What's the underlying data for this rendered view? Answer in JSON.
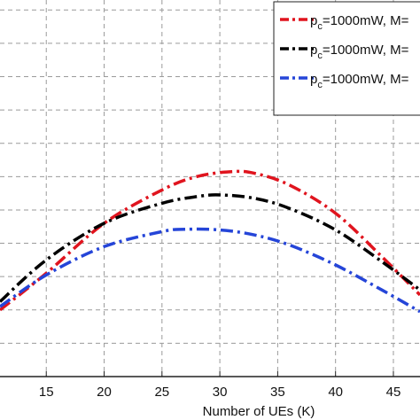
{
  "chart_data": {
    "type": "line",
    "title": "",
    "xlabel": "Number of UEs (K)",
    "ylabel": "",
    "xlim": [
      11,
      47.3
    ],
    "ylim": [
      0,
      11.3
    ],
    "x_ticks": [
      15,
      20,
      25,
      30,
      35,
      40,
      45
    ],
    "y_grid": [
      1,
      2,
      3,
      4,
      5,
      6,
      7,
      8,
      9,
      10,
      11
    ],
    "grid": true,
    "legend_position": "top-right",
    "series": [
      {
        "name": "p_c=1000mW, M=",
        "color": "#e0141e",
        "x": [
          11,
          15,
          20,
          25,
          28,
          31,
          33,
          36,
          40,
          44,
          47.3
        ],
        "y": [
          2.0,
          3.1,
          4.6,
          5.6,
          6.0,
          6.15,
          6.1,
          5.75,
          4.9,
          3.6,
          2.45
        ]
      },
      {
        "name": "p_c=1000mW, M=",
        "color": "#000000",
        "x": [
          11,
          15,
          20,
          25,
          28,
          30,
          33,
          36,
          40,
          44,
          47.3
        ],
        "y": [
          2.25,
          3.5,
          4.6,
          5.2,
          5.4,
          5.45,
          5.35,
          5.05,
          4.4,
          3.45,
          2.6
        ]
      },
      {
        "name": "p_c=1000mW, M=",
        "color": "#2545d8",
        "x": [
          11,
          15,
          20,
          25,
          27,
          30,
          33,
          36,
          40,
          44,
          47.3
        ],
        "y": [
          2.1,
          3.05,
          3.9,
          4.35,
          4.42,
          4.4,
          4.25,
          3.95,
          3.35,
          2.6,
          1.95
        ]
      }
    ]
  }
}
